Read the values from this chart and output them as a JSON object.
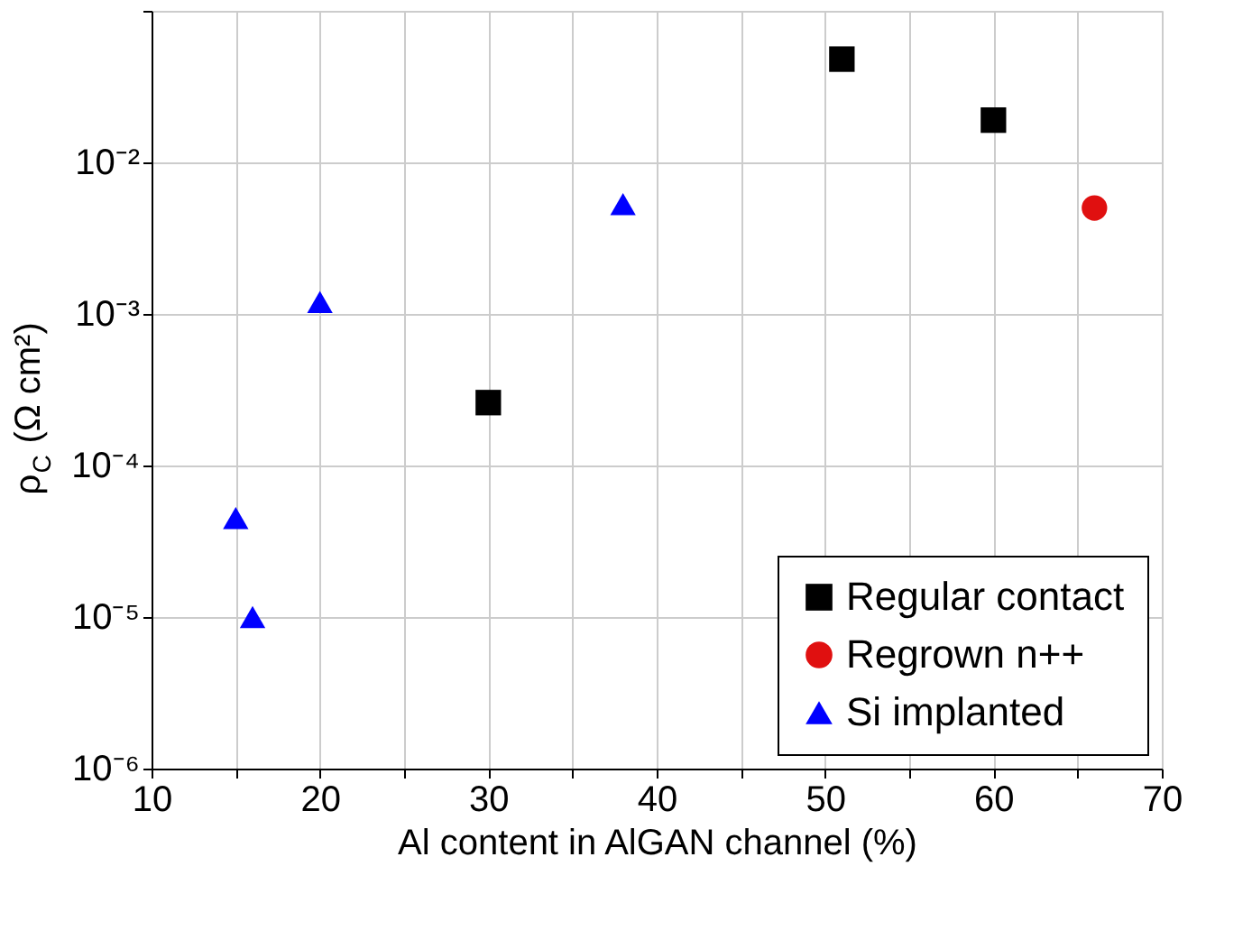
{
  "chart_data": {
    "type": "scatter",
    "xlabel": "Al content in AlGAN channel (%)",
    "ylabel": "ρ$_{C}$ (Ω cm²)",
    "xlim": [
      10,
      70
    ],
    "xticks": [
      10,
      {
        "value": 15,
        "label": null
      },
      20,
      {
        "value": 25,
        "label": null
      },
      30,
      {
        "value": 35,
        "label": null
      },
      40,
      {
        "value": 45,
        "label": null
      },
      50,
      {
        "value": 55,
        "label": null
      },
      60,
      {
        "value": 65,
        "label": null
      },
      70
    ],
    "ylim": [
      1e-06,
      0.1
    ],
    "log": true,
    "yticks": [
      {
        "value": 1e-06,
        "label": "10⁻⁶"
      },
      {
        "value": 1e-05,
        "label": "10⁻⁵"
      },
      {
        "value": 0.0001,
        "label": "10⁻⁴"
      },
      {
        "value": 0.001,
        "label": "10⁻³"
      },
      {
        "value": 0.01,
        "label": "10⁻²"
      },
      {
        "value": 0.1,
        "label": null
      }
    ],
    "grid": true,
    "legend": "bottom right",
    "series": [
      {
        "name": "Regular contact",
        "color": "#000000",
        "marker": "square",
        "x": [
          30,
          51,
          60
        ],
        "values": [
          0.00026,
          0.048,
          0.019
        ]
      },
      {
        "name": "Regrown n++",
        "color": "#e01010",
        "marker": "circle",
        "x": [
          66
        ],
        "values": [
          0.005
        ]
      },
      {
        "name": "Si implanted",
        "color": "#0000ff",
        "marker": "triangle",
        "x": [
          15,
          16,
          20,
          38
        ],
        "values": [
          4.5e-05,
          1e-05,
          0.0012,
          0.0053
        ]
      }
    ]
  }
}
